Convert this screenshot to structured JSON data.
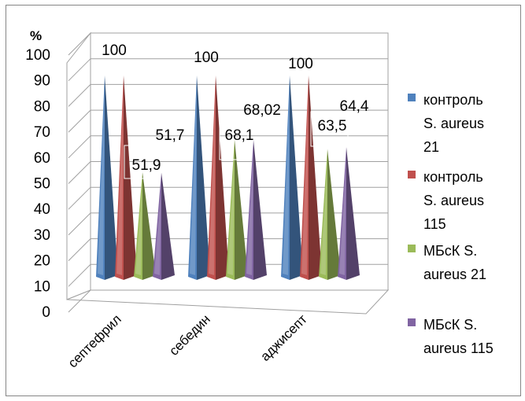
{
  "chart_data": {
    "type": "bar",
    "subtype": "3d-pyramid",
    "y_unit_label": "%",
    "categories": [
      "септефрил",
      "себедин",
      "аджисепт"
    ],
    "series": [
      {
        "name": "контроль S. aureus 21",
        "values": [
          100,
          100,
          100
        ],
        "color": "#4f81bd",
        "labels": [
          "100",
          "100",
          "100"
        ]
      },
      {
        "name": "контроль S. aureus 115",
        "values": [
          100,
          100,
          100
        ],
        "color": "#c0504d",
        "labels": [
          "",
          "",
          ""
        ]
      },
      {
        "name": "МБсК S. aureus 21",
        "values": [
          51.9,
          68.1,
          63.5
        ],
        "color": "#9bbb59",
        "labels": [
          "51,9",
          "68,1",
          "63,5"
        ]
      },
      {
        "name": "МБсК S. aureus 115",
        "values": [
          51.7,
          68.02,
          64.4
        ],
        "color": "#8064a2",
        "labels": [
          "51,7",
          "68,02",
          "64,4"
        ]
      }
    ],
    "ylim": [
      0,
      100
    ],
    "y_ticks": [
      "0",
      "10",
      "20",
      "30",
      "40",
      "50",
      "60",
      "70",
      "80",
      "90",
      "100"
    ],
    "grid": true,
    "legend_position": "right"
  }
}
